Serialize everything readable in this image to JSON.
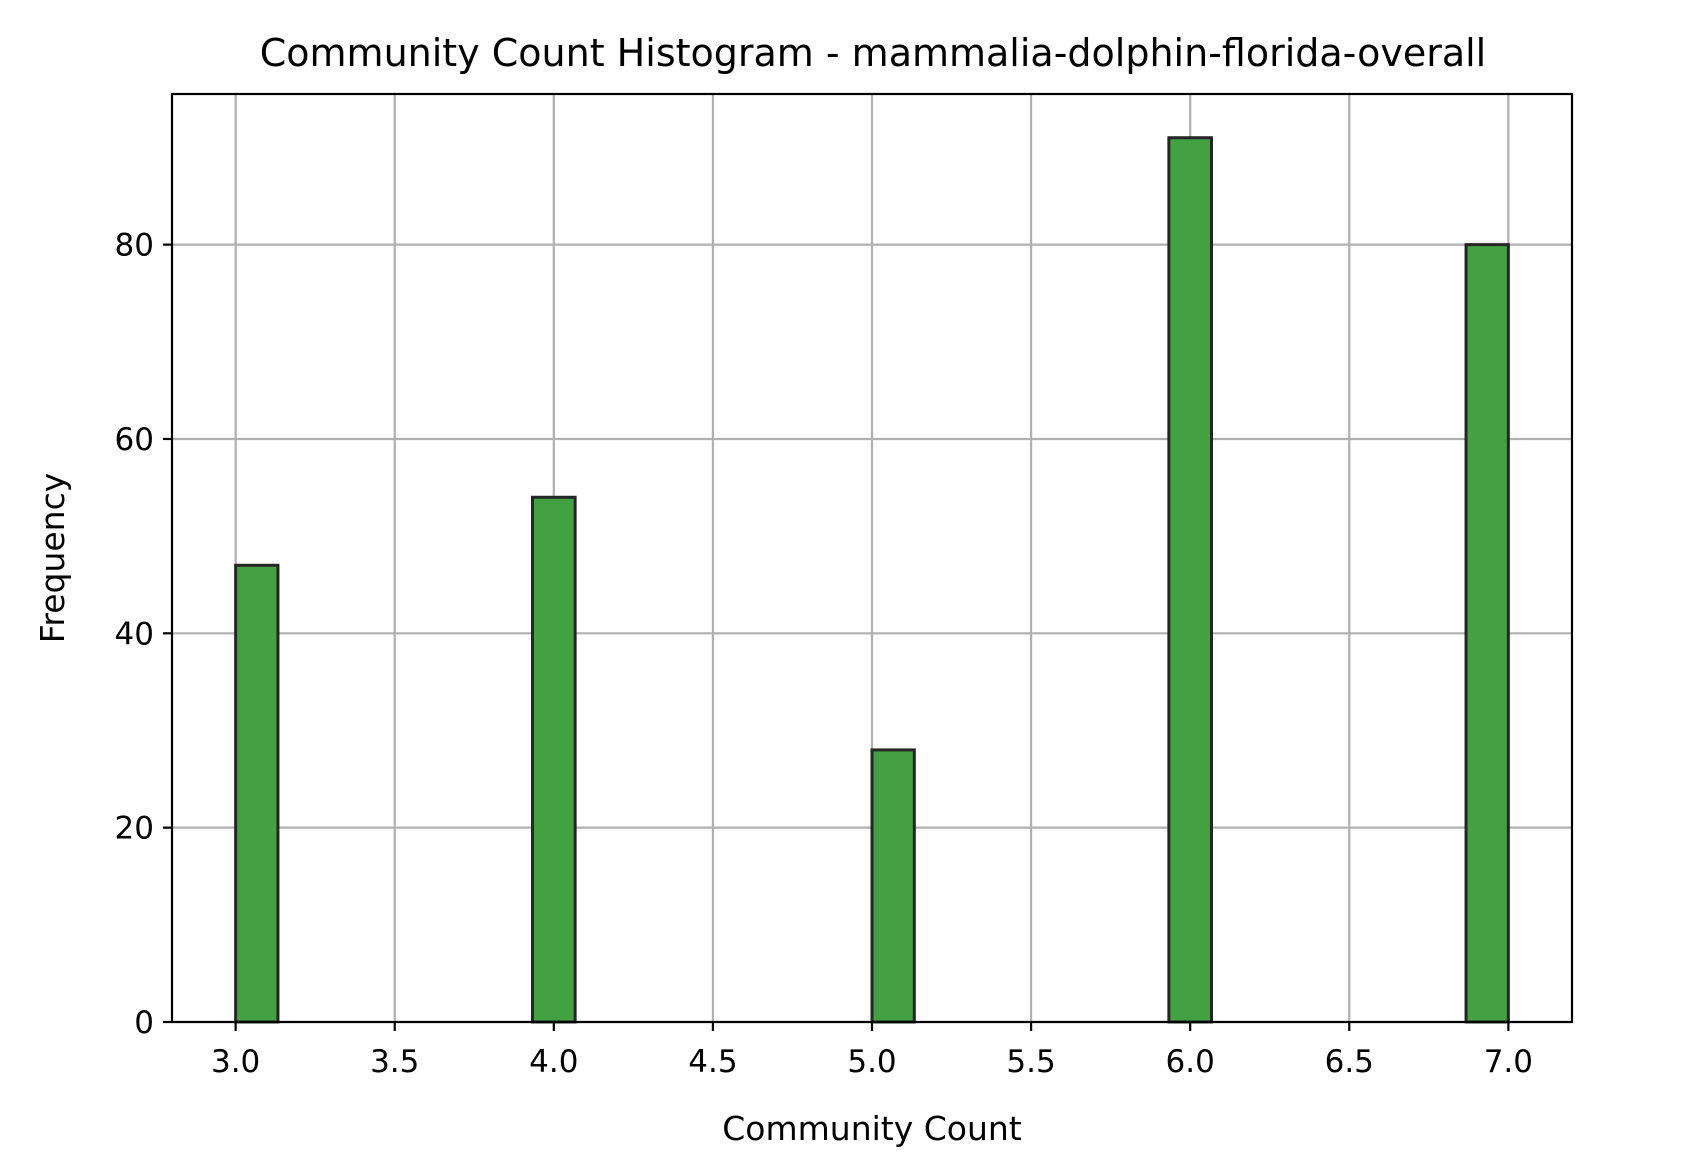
{
  "chart_data": {
    "type": "bar",
    "title": "Community Count Histogram - mammalia-dolphin-florida-overall",
    "xlabel": "Community Count",
    "ylabel": "Frequency",
    "xlim": [
      2.8,
      7.2
    ],
    "ylim": [
      0,
      95.5
    ],
    "xticks": [
      3.0,
      3.5,
      4.0,
      4.5,
      5.0,
      5.5,
      6.0,
      6.5,
      7.0
    ],
    "xtick_labels": [
      "3.0",
      "3.5",
      "4.0",
      "4.5",
      "5.0",
      "5.5",
      "6.0",
      "6.5",
      "7.0"
    ],
    "yticks": [
      0,
      20,
      40,
      60,
      80
    ],
    "ytick_labels": [
      "0",
      "20",
      "40",
      "60",
      "80"
    ],
    "grid": true,
    "bar_color": "#43a142",
    "bar_edge_color": "#262626",
    "bars": [
      {
        "x_start": 3.0,
        "x_end": 3.133,
        "value": 47
      },
      {
        "x_start": 3.933,
        "x_end": 4.067,
        "value": 54
      },
      {
        "x_start": 5.0,
        "x_end": 5.133,
        "value": 28
      },
      {
        "x_start": 5.933,
        "x_end": 6.067,
        "value": 91
      },
      {
        "x_start": 6.867,
        "x_end": 7.0,
        "value": 80
      }
    ]
  }
}
